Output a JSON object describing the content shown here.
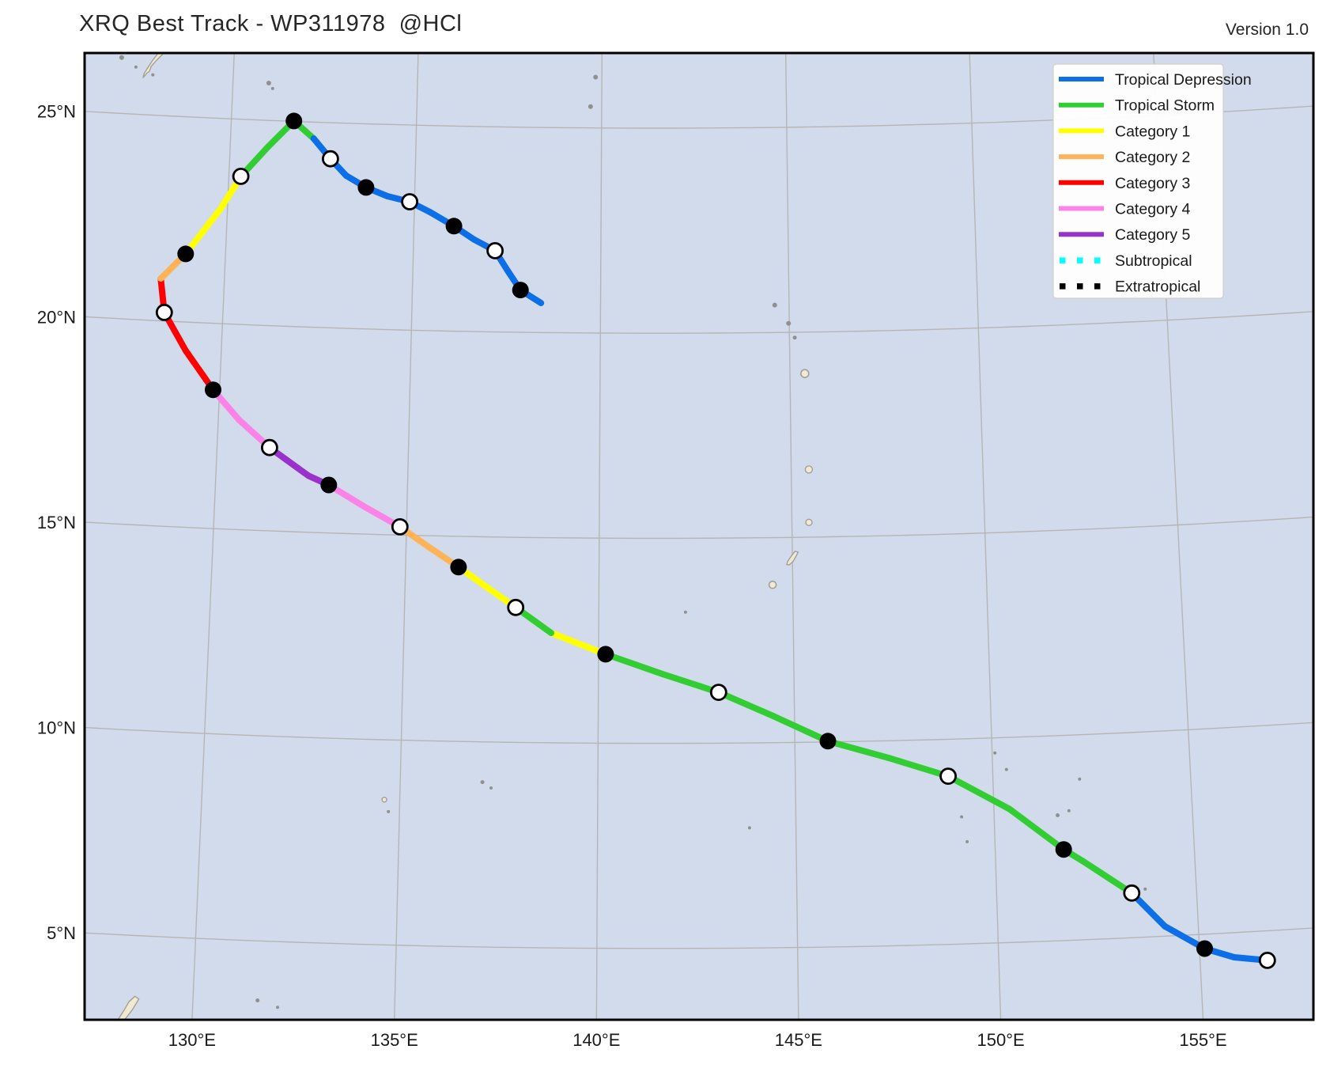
{
  "header": {
    "title": "XRQ Best Track - WP311978  @HCl",
    "version": "Version 1.0"
  },
  "colors": {
    "ocean": "#d2dbeb",
    "land": "#f2ead0",
    "land_stroke": "#a0a099",
    "islet": "#909090",
    "grid": "#b5b5b5",
    "frame": "#000000",
    "text": "#1a1a1a",
    "legend_border": "#cfcfcf",
    "TD": "#0d6fe8",
    "TS": "#32cd32",
    "C1": "#ffff00",
    "C2": "#ffb357",
    "C3": "#ff0000",
    "C4": "#fb83e8",
    "C5": "#9932cc",
    "SS": "#00ffff",
    "EX": "#000000"
  },
  "legend": {
    "entries": [
      {
        "label": "Tropical Depression",
        "key": "TD",
        "style": "solid"
      },
      {
        "label": "Tropical Storm",
        "key": "TS",
        "style": "solid"
      },
      {
        "label": "Category 1",
        "key": "C1",
        "style": "solid"
      },
      {
        "label": "Category 2",
        "key": "C2",
        "style": "solid"
      },
      {
        "label": "Category 3",
        "key": "C3",
        "style": "solid"
      },
      {
        "label": "Category 4",
        "key": "C4",
        "style": "solid"
      },
      {
        "label": "Category 5",
        "key": "C5",
        "style": "solid"
      },
      {
        "label": "Subtropical",
        "key": "SS",
        "style": "dotted"
      },
      {
        "label": "Extratropical",
        "key": "EX",
        "style": "dotted"
      }
    ]
  },
  "chart_data": {
    "type": "line",
    "title": "XRQ Best Track - WP311978  @HCl",
    "x_axis": {
      "label_unit": "°E",
      "ticks": [
        130,
        135,
        140,
        145,
        150,
        155
      ],
      "tick_labels": [
        "130°E",
        "135°E",
        "140°E",
        "145°E",
        "150°E",
        "155°E"
      ]
    },
    "y_axis": {
      "label_unit": "°N",
      "ticks": [
        25,
        20,
        15,
        10,
        5
      ],
      "tick_labels": [
        "25°N",
        "20°N",
        "15°N",
        "10°N",
        "5°N"
      ]
    },
    "grid": true,
    "legend_position": "upper right",
    "track_points": [
      {
        "lon": 156.67,
        "lat": 4.28,
        "marker": "white",
        "cat": "TD"
      },
      {
        "lon": 155.85,
        "lat": 4.4,
        "marker": null,
        "cat": "TD"
      },
      {
        "lon": 155.13,
        "lat": 4.65,
        "marker": "black",
        "cat": "TD"
      },
      {
        "lon": 154.17,
        "lat": 5.24,
        "marker": null,
        "cat": "TD"
      },
      {
        "lon": 153.38,
        "lat": 6.09,
        "marker": "white",
        "cat": "TS"
      },
      {
        "lon": 152.2,
        "lat": 6.91,
        "marker": null,
        "cat": "TS"
      },
      {
        "lon": 151.72,
        "lat": 7.22,
        "marker": "black",
        "cat": "TS"
      },
      {
        "lon": 150.4,
        "lat": 8.25,
        "marker": null,
        "cat": "TS"
      },
      {
        "lon": 148.87,
        "lat": 9.1,
        "marker": "white",
        "cat": "TS"
      },
      {
        "lon": 147.38,
        "lat": 9.58,
        "marker": null,
        "cat": "TS"
      },
      {
        "lon": 145.84,
        "lat": 10.02,
        "marker": "black",
        "cat": "TS"
      },
      {
        "lon": 144.46,
        "lat": 10.65,
        "marker": null,
        "cat": "TS"
      },
      {
        "lon": 143.07,
        "lat": 11.24,
        "marker": "white",
        "cat": "TS"
      },
      {
        "lon": 141.64,
        "lat": 11.69,
        "marker": null,
        "cat": "TS"
      },
      {
        "lon": 140.18,
        "lat": 12.17,
        "marker": "black",
        "cat": "C1"
      },
      {
        "lon": 138.78,
        "lat": 12.68,
        "marker": null,
        "cat": "TS"
      },
      {
        "lon": 137.86,
        "lat": 13.29,
        "marker": "white",
        "cat": "C1"
      },
      {
        "lon": 137.16,
        "lat": 13.74,
        "marker": null,
        "cat": "C1"
      },
      {
        "lon": 136.37,
        "lat": 14.25,
        "marker": "black",
        "cat": "C2"
      },
      {
        "lon": 135.58,
        "lat": 14.73,
        "marker": null,
        "cat": "C2"
      },
      {
        "lon": 134.83,
        "lat": 15.2,
        "marker": "white",
        "cat": "C4"
      },
      {
        "lon": 133.87,
        "lat": 15.68,
        "marker": null,
        "cat": "C4"
      },
      {
        "lon": 132.95,
        "lat": 16.17,
        "marker": "black",
        "cat": "C5"
      },
      {
        "lon": 132.41,
        "lat": 16.38,
        "marker": null,
        "cat": "C5"
      },
      {
        "lon": 131.37,
        "lat": 17.03,
        "marker": "white",
        "cat": "C4"
      },
      {
        "lon": 130.55,
        "lat": 17.67,
        "marker": null,
        "cat": "C4"
      },
      {
        "lon": 129.83,
        "lat": 18.38,
        "marker": "black",
        "cat": "C3"
      },
      {
        "lon": 129.06,
        "lat": 19.31,
        "marker": null,
        "cat": "C3"
      },
      {
        "lon": 128.45,
        "lat": 20.21,
        "marker": "white",
        "cat": "C3"
      },
      {
        "lon": 128.31,
        "lat": 21.03,
        "marker": null,
        "cat": "C2"
      },
      {
        "lon": 128.94,
        "lat": 21.66,
        "marker": "black",
        "cat": "C1"
      },
      {
        "lon": 129.83,
        "lat": 22.82,
        "marker": null,
        "cat": "C1"
      },
      {
        "lon": 130.32,
        "lat": 23.61,
        "marker": "white",
        "cat": "TS"
      },
      {
        "lon": 131.01,
        "lat": 24.35,
        "marker": null,
        "cat": "TS"
      },
      {
        "lon": 131.69,
        "lat": 25.01,
        "marker": "black",
        "cat": "TS"
      },
      {
        "lon": 132.24,
        "lat": 24.6,
        "marker": null,
        "cat": "TD"
      },
      {
        "lon": 132.71,
        "lat": 24.12,
        "marker": "white",
        "cat": "TD"
      },
      {
        "lon": 133.15,
        "lat": 23.72,
        "marker": null,
        "cat": "TD"
      },
      {
        "lon": 133.69,
        "lat": 23.45,
        "marker": "black",
        "cat": "TD"
      },
      {
        "lon": 134.27,
        "lat": 23.25,
        "marker": null,
        "cat": "TD"
      },
      {
        "lon": 134.87,
        "lat": 23.13,
        "marker": "white",
        "cat": "TD"
      },
      {
        "lon": 135.42,
        "lat": 22.89,
        "marker": null,
        "cat": "TD"
      },
      {
        "lon": 136.07,
        "lat": 22.56,
        "marker": "black",
        "cat": "TD"
      },
      {
        "lon": 136.62,
        "lat": 22.24,
        "marker": null,
        "cat": "TD"
      },
      {
        "lon": 137.18,
        "lat": 21.98,
        "marker": "white",
        "cat": "TD"
      },
      {
        "lon": 137.52,
        "lat": 21.5,
        "marker": null,
        "cat": "TD"
      },
      {
        "lon": 137.87,
        "lat": 21.03,
        "marker": "black",
        "cat": "TD"
      },
      {
        "lon": 138.42,
        "lat": 20.72,
        "marker": null,
        "cat": null
      }
    ]
  },
  "map_features": {
    "island_polygons": [
      {
        "id": "nw-large-island",
        "points": [
          [
            127.56,
            25.9
          ],
          [
            127.66,
            26.02
          ],
          [
            127.72,
            26.06
          ],
          [
            127.76,
            26.18
          ],
          [
            127.88,
            26.32
          ],
          [
            128.02,
            26.46
          ],
          [
            128.16,
            26.6
          ],
          [
            128.3,
            26.76
          ],
          [
            128.34,
            26.88
          ],
          [
            128.22,
            26.8
          ],
          [
            128.06,
            26.64
          ],
          [
            127.92,
            26.5
          ],
          [
            127.8,
            26.34
          ],
          [
            127.68,
            26.16
          ],
          [
            127.58,
            26.0
          ]
        ]
      },
      {
        "id": "central-island",
        "points": [
          [
            144.92,
            14.33
          ],
          [
            145.02,
            14.42
          ],
          [
            145.1,
            14.55
          ],
          [
            145.15,
            14.64
          ],
          [
            145.07,
            14.66
          ],
          [
            144.97,
            14.54
          ],
          [
            144.88,
            14.42
          ],
          [
            144.85,
            14.34
          ]
        ]
      },
      {
        "id": "sw-corner-island",
        "points": [
          [
            128.15,
            2.9
          ],
          [
            128.3,
            3.15
          ],
          [
            128.42,
            3.38
          ],
          [
            128.56,
            3.52
          ],
          [
            128.66,
            3.46
          ],
          [
            128.52,
            3.2
          ],
          [
            128.38,
            3.0
          ],
          [
            128.22,
            2.8
          ]
        ]
      }
    ],
    "islets": [
      {
        "lon": 126.95,
        "lat": 26.36,
        "r": 3,
        "style": "dot"
      },
      {
        "lon": 127.35,
        "lat": 26.15,
        "r": 2,
        "style": "dot"
      },
      {
        "lon": 127.82,
        "lat": 25.98,
        "r": 2,
        "style": "dot"
      },
      {
        "lon": 130.97,
        "lat": 25.91,
        "r": 3,
        "style": "dot"
      },
      {
        "lon": 131.08,
        "lat": 25.78,
        "r": 2,
        "style": "dot"
      },
      {
        "lon": 139.83,
        "lat": 26.24,
        "r": 3,
        "style": "dot"
      },
      {
        "lon": 139.7,
        "lat": 25.52,
        "r": 3,
        "style": "dot"
      },
      {
        "lon": 144.62,
        "lat": 20.67,
        "r": 3,
        "style": "dot"
      },
      {
        "lon": 144.98,
        "lat": 20.22,
        "r": 3,
        "style": "dot"
      },
      {
        "lon": 145.14,
        "lat": 19.87,
        "r": 2.5,
        "style": "dot"
      },
      {
        "lon": 145.39,
        "lat": 18.99,
        "r": 5,
        "style": "ring"
      },
      {
        "lon": 145.46,
        "lat": 16.65,
        "r": 4.5,
        "style": "land"
      },
      {
        "lon": 145.44,
        "lat": 15.36,
        "r": 4,
        "style": "land"
      },
      {
        "lon": 144.48,
        "lat": 13.85,
        "r": 4.5,
        "style": "ring"
      },
      {
        "lon": 142.23,
        "lat": 13.2,
        "r": 2,
        "style": "dot"
      },
      {
        "lon": 137.08,
        "lat": 9.02,
        "r": 2.5,
        "style": "dot"
      },
      {
        "lon": 137.3,
        "lat": 8.88,
        "r": 2,
        "style": "dot"
      },
      {
        "lon": 134.61,
        "lat": 8.54,
        "r": 3,
        "style": "land"
      },
      {
        "lon": 134.72,
        "lat": 8.25,
        "r": 2,
        "style": "dot"
      },
      {
        "lon": 143.83,
        "lat": 7.93,
        "r": 2,
        "style": "dot"
      },
      {
        "lon": 149.18,
        "lat": 8.1,
        "r": 2,
        "style": "dot"
      },
      {
        "lon": 149.3,
        "lat": 7.49,
        "r": 2,
        "style": "dot"
      },
      {
        "lon": 150.07,
        "lat": 9.63,
        "r": 2,
        "style": "dot"
      },
      {
        "lon": 150.35,
        "lat": 9.22,
        "r": 2,
        "style": "dot"
      },
      {
        "lon": 151.6,
        "lat": 8.06,
        "r": 2.5,
        "style": "dot"
      },
      {
        "lon": 151.89,
        "lat": 8.16,
        "r": 2,
        "style": "dot"
      },
      {
        "lon": 152.19,
        "lat": 8.92,
        "r": 2,
        "style": "dot"
      },
      {
        "lon": 153.72,
        "lat": 6.17,
        "r": 2,
        "style": "dot"
      },
      {
        "lon": 131.6,
        "lat": 3.55,
        "r": 2.5,
        "style": "dot"
      },
      {
        "lon": 132.1,
        "lat": 3.4,
        "r": 2,
        "style": "dot"
      }
    ]
  }
}
